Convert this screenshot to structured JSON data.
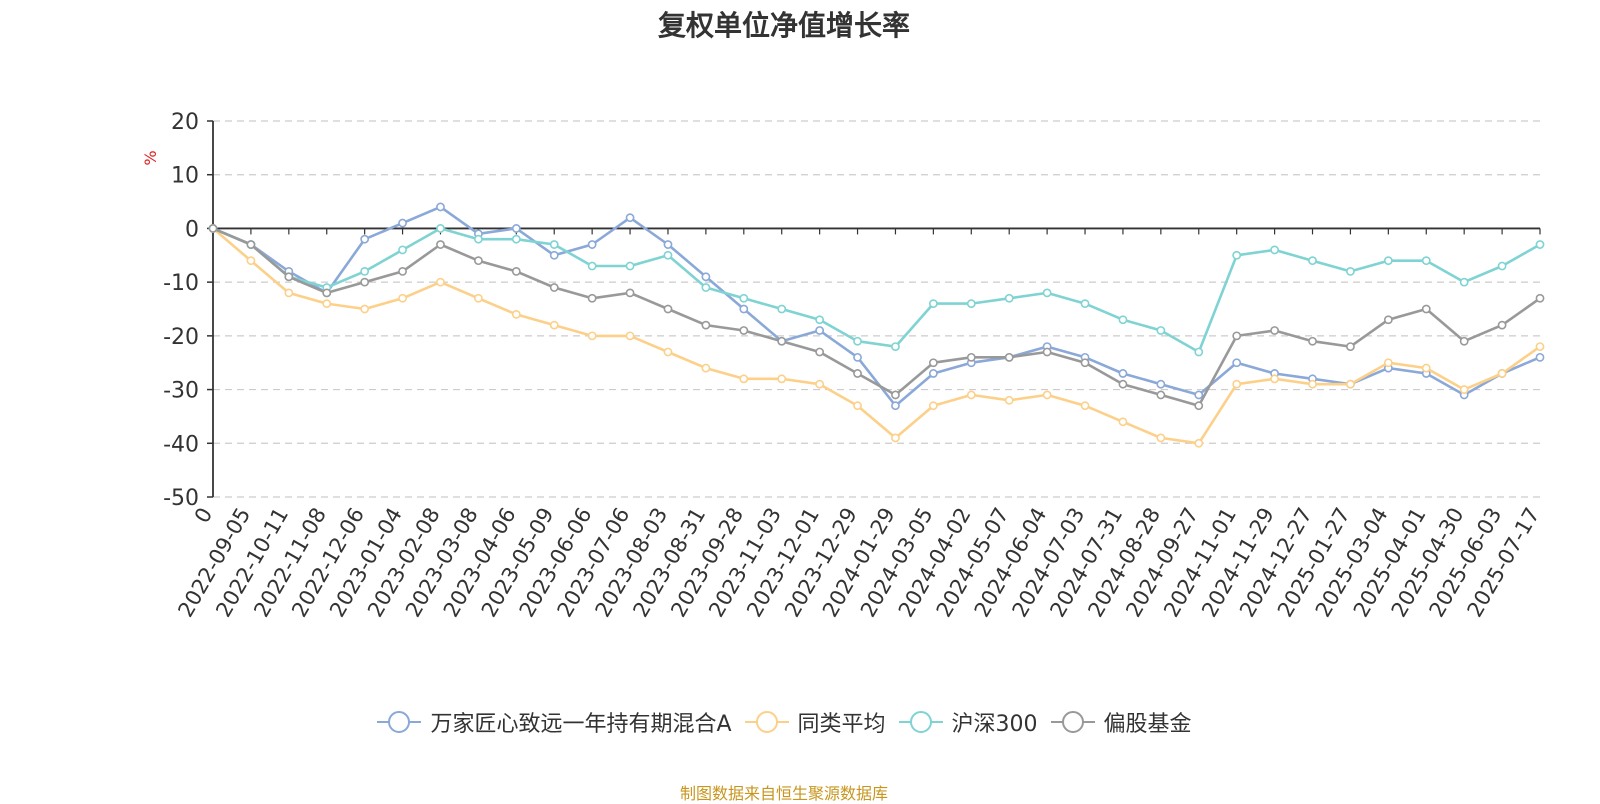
{
  "chart_data": {
    "type": "line",
    "title": "复权单位净值增长率",
    "ylabel": "%",
    "ylim": [
      -50,
      20
    ],
    "yticks": [
      "20",
      "10",
      "0",
      "-10",
      "-20",
      "-30",
      "-40",
      "-50"
    ],
    "grid": true,
    "legend_position": "bottom",
    "categories": [
      "0",
      "2022-09-05",
      "2022-10-11",
      "2022-11-08",
      "2022-12-06",
      "2023-01-04",
      "2023-02-08",
      "2023-03-08",
      "2023-04-06",
      "2023-05-09",
      "2023-06-06",
      "2023-07-06",
      "2023-08-03",
      "2023-08-31",
      "2023-09-28",
      "2023-11-03",
      "2023-12-01",
      "2023-12-29",
      "2024-01-29",
      "2024-03-05",
      "2024-04-02",
      "2024-05-07",
      "2024-06-04",
      "2024-07-03",
      "2024-07-31",
      "2024-08-28",
      "2024-09-27",
      "2024-11-01",
      "2024-11-29",
      "2024-12-27",
      "2025-01-27",
      "2025-03-04",
      "2025-04-01",
      "2025-04-30",
      "2025-06-03",
      "2025-07-17"
    ],
    "series": [
      {
        "name": "万家匠心致远一年持有期混合A",
        "color": "#8aa8d8",
        "values": [
          0,
          -3,
          -8,
          -12,
          -2,
          1,
          4,
          -1,
          0,
          -5,
          -3,
          2,
          -3,
          -9,
          -15,
          -21,
          -19,
          -24,
          -33,
          -27,
          -25,
          -24,
          -22,
          -24,
          -27,
          -29,
          -31,
          -25,
          -27,
          -28,
          -29,
          -26,
          -27,
          -31,
          -27,
          -24
        ]
      },
      {
        "name": "同类平均",
        "color": "#fdd08a",
        "values": [
          0,
          -6,
          -12,
          -14,
          -15,
          -13,
          -10,
          -13,
          -16,
          -18,
          -20,
          -20,
          -23,
          -26,
          -28,
          -28,
          -29,
          -33,
          -39,
          -33,
          -31,
          -32,
          -31,
          -33,
          -36,
          -39,
          -40,
          -29,
          -28,
          -29,
          -29,
          -25,
          -26,
          -30,
          -27,
          -22
        ]
      },
      {
        "name": "沪深300",
        "color": "#7fd3d3",
        "values": [
          0,
          -3,
          -9,
          -11,
          -8,
          -4,
          0,
          -2,
          -2,
          -3,
          -7,
          -7,
          -5,
          -11,
          -13,
          -15,
          -17,
          -21,
          -22,
          -14,
          -14,
          -13,
          -12,
          -14,
          -17,
          -19,
          -23,
          -5,
          -4,
          -6,
          -8,
          -6,
          -6,
          -10,
          -7,
          -3
        ]
      },
      {
        "name": "偏股基金",
        "color": "#999999",
        "values": [
          0,
          -3,
          -9,
          -12,
          -10,
          -8,
          -3,
          -6,
          -8,
          -11,
          -13,
          -12,
          -15,
          -18,
          -19,
          -21,
          -23,
          -27,
          -31,
          -25,
          -24,
          -24,
          -23,
          -25,
          -29,
          -31,
          -33,
          -20,
          -19,
          -21,
          -22,
          -17,
          -15,
          -21,
          -18,
          -13
        ]
      }
    ]
  },
  "legend": {
    "items": [
      "万家匠心致远一年持有期混合A",
      "同类平均",
      "沪深300",
      "偏股基金"
    ]
  },
  "source_text": "制图数据来自恒生聚源数据库",
  "colors": {
    "axis": "#333333",
    "grid": "#cccccc",
    "ylabel_color": "#e02020",
    "source_color": "#c8961e"
  }
}
